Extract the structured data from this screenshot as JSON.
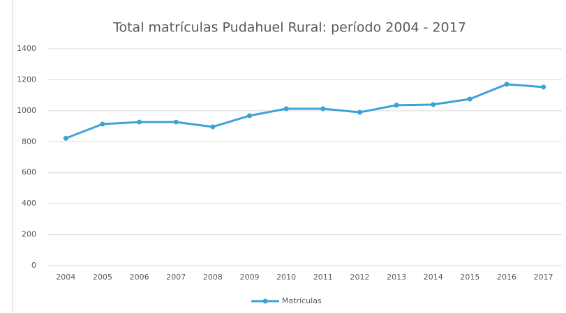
{
  "chart_data": {
    "type": "line",
    "title": "Total matrículas Pudahuel Rural: período 2004 - 2017",
    "categories": [
      "2004",
      "2005",
      "2006",
      "2007",
      "2008",
      "2009",
      "2010",
      "2011",
      "2012",
      "2013",
      "2014",
      "2015",
      "2016",
      "2017"
    ],
    "series": [
      {
        "name": "Matrículas",
        "color": "#3ba3d8",
        "values": [
          822,
          914,
          927,
          927,
          896,
          968,
          1013,
          1013,
          990,
          1036,
          1040,
          1076,
          1171,
          1153
        ]
      }
    ],
    "ylim": [
      0,
      1400
    ],
    "yticks": [
      0,
      200,
      400,
      600,
      800,
      1000,
      1200,
      1400
    ],
    "grid": true,
    "legend": "bottom"
  }
}
